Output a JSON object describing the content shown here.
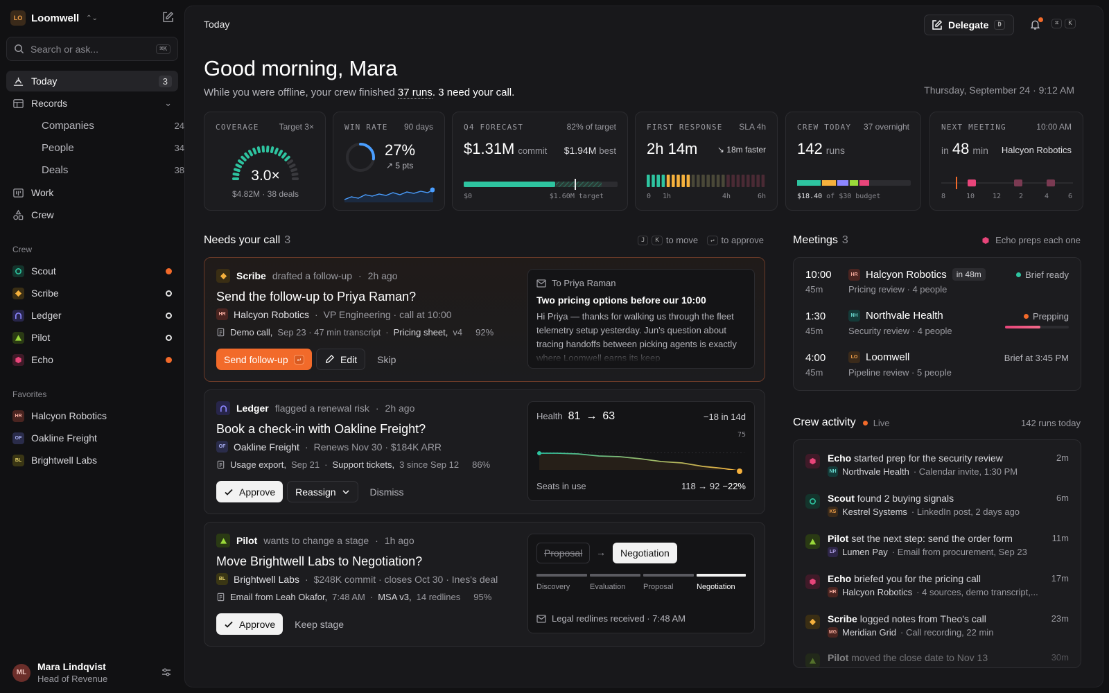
{
  "colors": {
    "accent": "#f26a2a",
    "teal": "#2ec4a0",
    "amber": "#f5b13d",
    "blue": "#4a9eff",
    "pink": "#e8457a",
    "lime": "#9ad93a"
  },
  "workspace": {
    "badge": "LO",
    "name": "Loomwell"
  },
  "search": {
    "placeholder": "Search or ask...",
    "shortcut": "⌘K"
  },
  "nav": {
    "today": {
      "label": "Today",
      "count": "3"
    },
    "records": {
      "label": "Records"
    },
    "companies": {
      "label": "Companies",
      "count": "24"
    },
    "people": {
      "label": "People",
      "count": "34"
    },
    "deals": {
      "label": "Deals",
      "count": "38"
    },
    "work": {
      "label": "Work"
    },
    "crew": {
      "label": "Crew"
    }
  },
  "crew_section": {
    "title": "Crew",
    "items": [
      {
        "name": "Scout",
        "status": "active"
      },
      {
        "name": "Scribe",
        "status": "idle"
      },
      {
        "name": "Ledger",
        "status": "idle"
      },
      {
        "name": "Pilot",
        "status": "idle"
      },
      {
        "name": "Echo",
        "status": "active"
      }
    ]
  },
  "favorites": {
    "title": "Favorites",
    "items": [
      {
        "badge": "HR",
        "name": "Halcyon Robotics"
      },
      {
        "badge": "OF",
        "name": "Oakline Freight"
      },
      {
        "badge": "BL",
        "name": "Brightwell Labs"
      }
    ]
  },
  "user": {
    "initials": "ML",
    "name": "Mara Lindqvist",
    "role": "Head of Revenue"
  },
  "header": {
    "breadcrumb": "Today",
    "delegate_label": "Delegate",
    "delegate_key": "D",
    "cmd_key1": "⌘",
    "cmd_key2": "K"
  },
  "greeting": {
    "title": "Good morning, Mara",
    "sub_pre": "While you were offline, your crew finished ",
    "sub_runs": "37 runs",
    "sub_post": ". 3 need your call.",
    "date": "Thursday, September 24 · 9:12 AM"
  },
  "kpis": {
    "coverage": {
      "label": "COVERAGE",
      "right": "Target 3×",
      "value": "3.0×",
      "sub": "$4.82M · 38 deals",
      "level": 1.0
    },
    "win_rate": {
      "label": "WIN RATE",
      "right": "90 days",
      "value": "27%",
      "delta": "↗ 5 pts",
      "level": 0.27
    },
    "forecast": {
      "label": "Q4 FORECAST",
      "right": "82% of target",
      "value": "$1.31M",
      "value_unit": "commit",
      "best": "$1.94M",
      "best_unit": "best",
      "tick0": "$0",
      "tick1": "$1.60M target"
    },
    "first_response": {
      "label": "FIRST RESPONSE",
      "right": "SLA 4h",
      "value": "2h 14m",
      "delta": "↘ 18m faster",
      "ticks": [
        "0",
        "1h",
        "4h",
        "6h"
      ]
    },
    "crew_today": {
      "label": "CREW TODAY",
      "right": "37 overnight",
      "value": "142",
      "unit": "runs",
      "budget": "$18.40",
      "budget_post": " of $30 budget"
    },
    "next_meeting": {
      "label": "NEXT MEETING",
      "right": "10:00 AM",
      "pre": "in",
      "value": "48",
      "unit": "min",
      "company": "Halcyon Robotics",
      "ticks": [
        "8",
        "10",
        "12",
        "2",
        "4",
        "6"
      ]
    }
  },
  "needs": {
    "title": "Needs your call",
    "count": "3",
    "k1": "J",
    "k2": "K",
    "move": "to move",
    "k3": "↵",
    "approve": "to approve"
  },
  "cards": [
    {
      "agent": "Scribe",
      "verb": "drafted a follow-up",
      "time": "2h ago",
      "title": "Send the follow-up to Priya Raman?",
      "co_badge": "HR",
      "company": "Halcyon Robotics",
      "meta": "VP Engineering · call at 10:00",
      "src1": "Demo call,",
      "src1b": "Sep 23 · 47 min transcript",
      "src2": "Pricing sheet,",
      "src2b": "v4",
      "pct": "92%",
      "a1": "Send follow-up",
      "a1k": "↵",
      "a2": "Edit",
      "a3": "Skip",
      "email_to": "To Priya Raman",
      "email_subject": "Two pricing options before our 10:00",
      "email_body": "Hi Priya — thanks for walking us through the fleet telemetry setup yesterday. Jun's question about tracing handoffs between picking agents is exactly where Loomwell earns its keep"
    },
    {
      "agent": "Ledger",
      "verb": "flagged a renewal risk",
      "time": "2h ago",
      "title": "Book a check-in with Oakline Freight?",
      "co_badge": "OF",
      "company": "Oakline Freight",
      "meta": "Renews Nov 30 · $184K ARR",
      "src1": "Usage export,",
      "src1b": "Sep 21",
      "src2": "Support tickets,",
      "src2b": "3 since Sep 12",
      "pct": "86%",
      "a1": "Approve",
      "a2": "Reassign",
      "a3": "Dismiss",
      "health_label": "Health",
      "health_from": "81",
      "health_to": "63",
      "health_delta": "−18 in 14d",
      "ref": "75",
      "seats_label": "Seats in use",
      "seats": "118 → 92",
      "seats_delta": "−22%"
    },
    {
      "agent": "Pilot",
      "verb": "wants to change a stage",
      "time": "1h ago",
      "title": "Move Brightwell Labs to Negotiation?",
      "co_badge": "BL",
      "company": "Brightwell Labs",
      "meta": "$248K commit · closes Oct 30 · Ines's deal",
      "src1": "Email from Leah Okafor,",
      "src1b": "7:48 AM",
      "src2": "MSA v3,",
      "src2b": "14 redlines",
      "pct": "95%",
      "a1": "Approve",
      "a2": "Keep stage",
      "stage_from": "Proposal",
      "stage_to": "Negotiation",
      "stages": [
        "Discovery",
        "Evaluation",
        "Proposal",
        "Negotiation"
      ],
      "note": "Legal redlines received · 7:48 AM"
    }
  ],
  "meetings": {
    "title": "Meetings",
    "count": "3",
    "hint": "Echo preps each one",
    "items": [
      {
        "time": "10:00",
        "dur": "45m",
        "badge": "HR",
        "company": "Halcyon Robotics",
        "tag": "in 48m",
        "sub": "Pricing review · 4 people",
        "status": "Brief ready"
      },
      {
        "time": "1:30",
        "dur": "45m",
        "badge": "NH",
        "company": "Northvale Health",
        "sub": "Security review · 4 people",
        "status": "Prepping",
        "progress": 0.55
      },
      {
        "time": "4:00",
        "dur": "45m",
        "badge": "LO",
        "company": "Loomwell",
        "sub": "Pipeline review · 5 people",
        "status": "Brief at 3:45 PM"
      }
    ]
  },
  "activity": {
    "title": "Crew activity",
    "live": "Live",
    "total": "142 runs today",
    "items": [
      {
        "agent": "Echo",
        "text": "started prep for the security review",
        "time": "2m",
        "badge": "NH",
        "company": "Northvale Health",
        "src": "· Calendar invite, 1:30 PM"
      },
      {
        "agent": "Scout",
        "text": "found 2 buying signals",
        "time": "6m",
        "badge": "KS",
        "company": "Kestrel Systems",
        "src": "· LinkedIn post, 2 days ago"
      },
      {
        "agent": "Pilot",
        "text": "set the next step: send the order form",
        "time": "11m",
        "badge": "LP",
        "company": "Lumen Pay",
        "src": "· Email from procurement, Sep 23"
      },
      {
        "agent": "Echo",
        "text": "briefed you for the pricing call",
        "time": "17m",
        "badge": "HR",
        "company": "Halcyon Robotics",
        "src": "· 4 sources, demo transcript,..."
      },
      {
        "agent": "Scribe",
        "text": "logged notes from Theo's call",
        "time": "23m",
        "badge": "MG",
        "company": "Meridian Grid",
        "src": "· Call recording, 22 min"
      },
      {
        "agent": "Pilot",
        "text": "moved the close date to Nov 13",
        "time": "30m"
      }
    ]
  }
}
